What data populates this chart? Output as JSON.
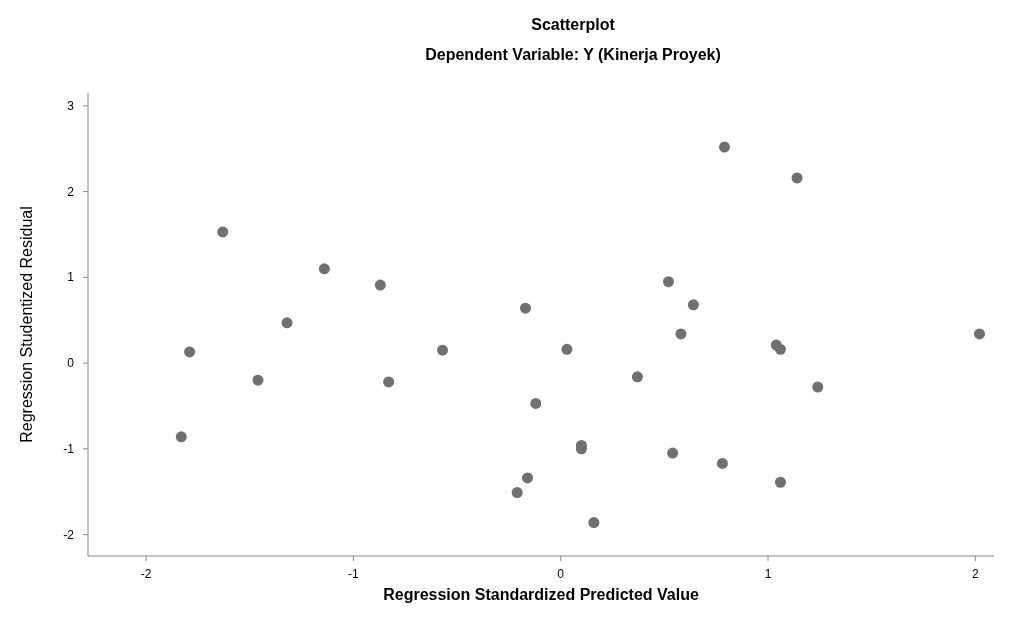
{
  "chart_data": {
    "type": "scatter",
    "title": "Scatterplot",
    "subtitle": "Dependent Variable: Y (Kinerja Proyek)",
    "xlabel": "Regression Standardized Predicted Value",
    "ylabel": "Regression Studentized Residual",
    "xlim": [
      -2.28,
      2.09
    ],
    "ylim": [
      -2.25,
      3.15
    ],
    "xticks": [
      -2,
      -1,
      0,
      1,
      2
    ],
    "yticks": [
      -2,
      -1,
      0,
      1,
      2,
      3
    ],
    "grid": false,
    "marker": "circle",
    "series": [
      {
        "color": "#707070",
        "x": [
          -1.63,
          -1.79,
          -1.83,
          -1.46,
          -1.32,
          -1.14,
          -0.87,
          -0.83,
          -0.57,
          -0.17,
          -0.12,
          -0.16,
          -0.21,
          0.03,
          0.1,
          0.1,
          0.16,
          0.37,
          0.52,
          0.54,
          0.58,
          0.64,
          0.79,
          0.78,
          1.04,
          1.06,
          1.14,
          1.06,
          1.24,
          2.02
        ],
        "values": [
          1.53,
          0.13,
          -0.86,
          -0.2,
          0.47,
          1.1,
          0.91,
          -0.22,
          0.15,
          0.64,
          -0.47,
          -1.34,
          -1.51,
          0.16,
          -0.96,
          -1.0,
          -1.86,
          -0.16,
          0.95,
          -1.05,
          0.34,
          0.68,
          2.52,
          -1.17,
          0.21,
          0.16,
          2.16,
          -1.39,
          -0.28,
          0.34
        ]
      }
    ]
  }
}
